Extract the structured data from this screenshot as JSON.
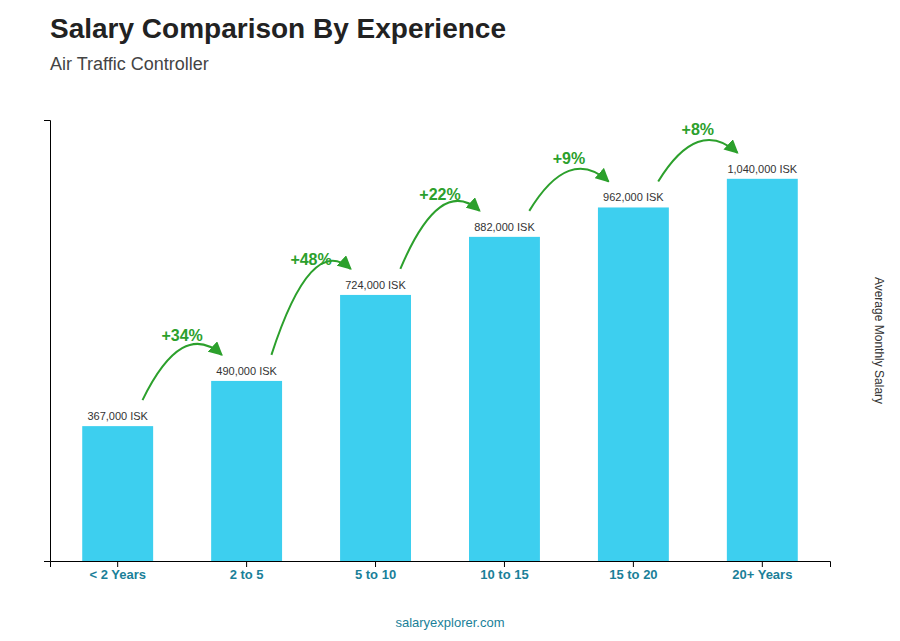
{
  "chart_data": {
    "type": "bar",
    "title": "Salary Comparison By Experience",
    "subtitle": "Air Traffic Controller",
    "ylabel": "Average Monthly Salary",
    "footer": "salaryexplorer.com",
    "categories": [
      "< 2 Years",
      "2 to 5",
      "5 to 10",
      "10 to 15",
      "15 to 20",
      "20+ Years"
    ],
    "values": [
      367000,
      490000,
      724000,
      882000,
      962000,
      1040000
    ],
    "value_labels": [
      "367,000 ISK",
      "490,000 ISK",
      "724,000 ISK",
      "882,000 ISK",
      "962,000 ISK",
      "1,040,000 ISK"
    ],
    "data_labels": true,
    "annotations": [
      "+34%",
      "+48%",
      "+22%",
      "+9%",
      "+8%"
    ],
    "color": "#3dcfef",
    "ylim": [
      0,
      1200000
    ],
    "yticks": [],
    "tick_labels": "x",
    "grid": false
  }
}
